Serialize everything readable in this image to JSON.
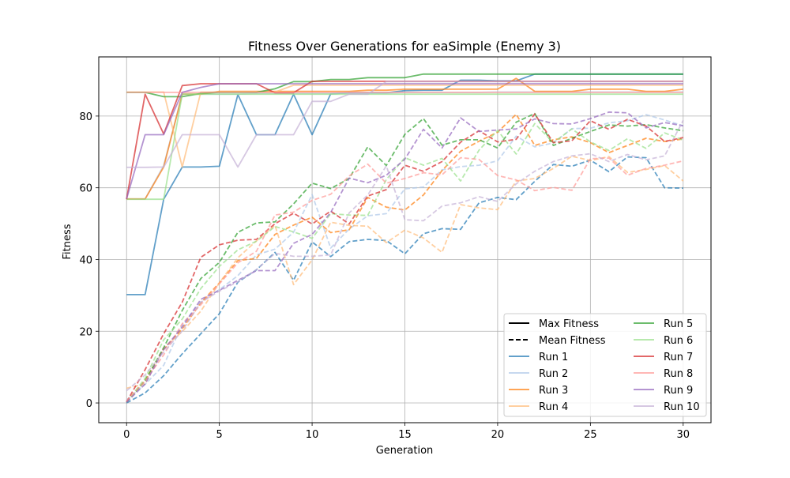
{
  "chart_data": {
    "type": "line",
    "title": "Fitness Over Generations for eaSimple (Enemy 3)",
    "xlabel": "Generation",
    "ylabel": "Fitness",
    "xlim": [
      -1.5,
      31.5
    ],
    "ylim": [
      -5.5,
      96.5
    ],
    "xticks": [
      0,
      5,
      10,
      15,
      20,
      25,
      30
    ],
    "yticks": [
      0,
      20,
      40,
      60,
      80
    ],
    "grid": true,
    "legend_placement": "lower-right",
    "legend": {
      "style_entries": [
        {
          "label": "Max Fitness",
          "style": "solid"
        },
        {
          "label": "Mean Fitness",
          "style": "dashed"
        }
      ]
    },
    "x": [
      0,
      1,
      2,
      3,
      4,
      5,
      6,
      7,
      8,
      9,
      10,
      11,
      12,
      13,
      14,
      15,
      16,
      17,
      18,
      19,
      20,
      21,
      22,
      23,
      24,
      25,
      26,
      27,
      28,
      29,
      30
    ],
    "series": [
      {
        "name": "Run 1",
        "color": "#1f77b4",
        "max": [
          30.2,
          30.2,
          56.8,
          65.8,
          65.8,
          66,
          86,
          74.8,
          74.8,
          86.1,
          74.8,
          86.2,
          86.5,
          86.5,
          86.5,
          87.1,
          87.2,
          87.2,
          90,
          90,
          89.8,
          89.8,
          91.7,
          91.7,
          91.7,
          91.7,
          91.7,
          91.7,
          91.7,
          91.7,
          91.7
        ],
        "mean": [
          0,
          2.8,
          7.6,
          13.7,
          19.3,
          24.9,
          33.7,
          37.1,
          42,
          34.2,
          44.9,
          40.8,
          45,
          45.6,
          45.3,
          41.6,
          47.2,
          48.6,
          48.4,
          55.8,
          57.3,
          56.7,
          61.8,
          66.5,
          66,
          67.7,
          64.5,
          68.6,
          68.4,
          60,
          59.9
        ]
      },
      {
        "name": "Run 2",
        "color": "#aec7e8",
        "max": [
          56.9,
          56.9,
          66.2,
          86.1,
          86.1,
          86.1,
          86.1,
          86.3,
          86.3,
          86.3,
          86.3,
          86.3,
          86.4,
          86.4,
          86.4,
          86.6,
          86.6,
          86.6,
          86.6,
          86.6,
          86.7,
          86.7,
          86.7,
          86.7,
          86.7,
          86.7,
          86.7,
          86.7,
          86.7,
          86.7,
          86.7
        ],
        "mean": [
          0.8,
          5.2,
          10.5,
          21.9,
          28.2,
          31.6,
          35.5,
          41.3,
          42.9,
          47.6,
          58.1,
          43.2,
          48.5,
          52.2,
          52.8,
          59.7,
          60.2,
          65,
          65.9,
          66.3,
          67.5,
          74.4,
          71.4,
          72.5,
          76.5,
          76.6,
          78.1,
          78.7,
          80.4,
          78.9,
          77.3
        ]
      },
      {
        "name": "Run 3",
        "color": "#ff7f0e",
        "max": [
          56.9,
          56.9,
          65.8,
          86.1,
          86.1,
          86.9,
          86.9,
          86.9,
          86.9,
          86.9,
          86.9,
          86.9,
          86.9,
          87.2,
          87.2,
          87.5,
          87.5,
          87.5,
          87.5,
          87.5,
          87.5,
          90.5,
          86.9,
          86.9,
          86.9,
          87.5,
          87.5,
          87.5,
          86.9,
          86.9,
          87.5
        ],
        "mean": [
          0.3,
          6.4,
          14.9,
          20.7,
          27.9,
          33.5,
          39.7,
          40.3,
          47,
          49.6,
          51.8,
          47.5,
          48.3,
          57.3,
          54.6,
          53.8,
          58,
          64.8,
          70.2,
          73,
          75.5,
          80.5,
          71.8,
          73.4,
          74.2,
          72.6,
          69.8,
          71.8,
          73.8,
          72.9,
          73.6
        ]
      },
      {
        "name": "Run 4",
        "color": "#ffbb78",
        "max": [
          86.7,
          86.7,
          86.7,
          65.8,
          86.7,
          86.7,
          86.7,
          86.7,
          86.7,
          88.6,
          88.6,
          88.6,
          88.6,
          88.6,
          88.6,
          88.6,
          88.6,
          88.6,
          88.6,
          88.6,
          88.6,
          88.6,
          88.6,
          88.6,
          88.6,
          88.6,
          88.6,
          88.6,
          88.6,
          88.6,
          88.6
        ],
        "mean": [
          4.1,
          5.3,
          15.4,
          19.9,
          25.6,
          33.5,
          40.5,
          45.2,
          49.5,
          33,
          39.9,
          50.4,
          49.5,
          49.3,
          44.7,
          48.2,
          46,
          42,
          55.3,
          54.4,
          53.9,
          61.9,
          62.6,
          65.4,
          68.8,
          67.6,
          68.7,
          64.3,
          65.1,
          66.2,
          61.9
        ]
      },
      {
        "name": "Run 5",
        "color": "#2ca02c",
        "max": [
          86.6,
          86.6,
          85.4,
          85.4,
          86.3,
          86.6,
          86.6,
          86.6,
          87.6,
          89.6,
          89.6,
          90.2,
          90.2,
          90.7,
          90.7,
          90.7,
          91.7,
          91.7,
          91.7,
          91.7,
          91.7,
          91.7,
          91.7,
          91.7,
          91.7,
          91.7,
          91.7,
          91.7,
          91.7,
          91.7,
          91.7
        ],
        "mean": [
          0.2,
          6.2,
          15.4,
          25.8,
          34.7,
          39.2,
          47.6,
          50.2,
          50.5,
          55.5,
          61.3,
          59.8,
          62.6,
          71.4,
          66.2,
          74.9,
          79.3,
          71.9,
          73.4,
          73.4,
          71.1,
          78.3,
          80.7,
          71.8,
          73.8,
          75.7,
          77.5,
          77.2,
          77.6,
          76.7,
          75.9
        ]
      },
      {
        "name": "Run 6",
        "color": "#98df8a",
        "max": [
          56.8,
          56.8,
          56.8,
          86.1,
          86.1,
          86.1,
          86.1,
          86.1,
          86.1,
          86.1,
          86.1,
          86.1,
          86.1,
          86.1,
          86.1,
          86.1,
          86.1,
          86.1,
          86.1,
          86.1,
          86.1,
          86.1,
          86.1,
          86.1,
          86.1,
          86.1,
          86.1,
          86.1,
          86.1,
          86.1,
          86.1
        ],
        "mean": [
          0.2,
          6.9,
          17.6,
          23.4,
          31.9,
          38.1,
          42.7,
          45.1,
          49.2,
          47.7,
          45.9,
          52.8,
          52.4,
          52.3,
          62.3,
          68.4,
          66.3,
          68.2,
          61.9,
          70.5,
          76,
          69.4,
          77.9,
          72.6,
          76.4,
          72.8,
          70.4,
          73.7,
          71,
          75.3,
          73.3
        ]
      },
      {
        "name": "Run 7",
        "color": "#d62728",
        "max": [
          56.8,
          86.1,
          75,
          88.5,
          89,
          89,
          89,
          89,
          86.5,
          86.5,
          89.7,
          89.7,
          89.7,
          89.7,
          89.7,
          89.7,
          89.7,
          89.7,
          89.7,
          89.7,
          89.7,
          89.7,
          89.7,
          89.7,
          89.7,
          89.7,
          89.7,
          89.7,
          89.7,
          89.7,
          89.7
        ],
        "mean": [
          0.3,
          9.3,
          19.3,
          28.1,
          40.6,
          44.1,
          45.4,
          45.6,
          50,
          52.9,
          49.9,
          53.5,
          49.9,
          57.7,
          59.5,
          66.3,
          64.6,
          67.3,
          72.7,
          75.9,
          72.8,
          73.5,
          80.6,
          72.6,
          73.1,
          78.7,
          76.3,
          79.1,
          77.2,
          72.9,
          74
        ]
      },
      {
        "name": "Run 8",
        "color": "#ff9896",
        "max": [
          86.6,
          86.6,
          86.6,
          86.6,
          86.6,
          86.6,
          86.6,
          86.6,
          86.6,
          86.6,
          86.6,
          86.6,
          86.6,
          86.6,
          86.6,
          86.6,
          86.6,
          86.6,
          86.6,
          86.6,
          86.6,
          86.6,
          86.6,
          86.6,
          86.6,
          86.6,
          86.6,
          86.6,
          86.6,
          86.6,
          86.6
        ],
        "mean": [
          0.5,
          6.1,
          13.4,
          22.1,
          27.4,
          33.2,
          39.1,
          42.3,
          52.4,
          53.2,
          56.5,
          58.2,
          63.3,
          66.6,
          61.3,
          62.6,
          64.2,
          63.6,
          68.4,
          67.9,
          63.4,
          62.2,
          59.2,
          60.1,
          59.3,
          68.1,
          68.3,
          63.5,
          65.4,
          66.3,
          67.5
        ]
      },
      {
        "name": "Run 9",
        "color": "#9467bd",
        "max": [
          56.9,
          74.8,
          74.8,
          86.6,
          88,
          89,
          89,
          89,
          89,
          89,
          89,
          89,
          89,
          89,
          89,
          89,
          89,
          89,
          89,
          89,
          89,
          89,
          89,
          89,
          89,
          89,
          89,
          89,
          89,
          89,
          89
        ],
        "mean": [
          0.2,
          5.3,
          14.9,
          21.2,
          28.9,
          31.4,
          34.2,
          36.9,
          36.9,
          44.5,
          47,
          53.1,
          62.7,
          61.4,
          63.5,
          68,
          76.3,
          71.1,
          79.5,
          75.7,
          76.1,
          76.4,
          79.2,
          77.9,
          77.8,
          79.3,
          81.1,
          80.9,
          76.7,
          78.2,
          77.3
        ]
      },
      {
        "name": "Run 10",
        "color": "#c5b0d5",
        "max": [
          65.7,
          65.7,
          65.8,
          74.8,
          74.8,
          74.8,
          65.8,
          74.8,
          74.8,
          74.8,
          84.1,
          84.1,
          86.1,
          86.1,
          89.6,
          89.6,
          89.6,
          89.6,
          89.6,
          89.6,
          89.6,
          89.6,
          89.6,
          89.6,
          89.6,
          89.6,
          89.6,
          89.6,
          89.6,
          89.6,
          89.6
        ],
        "mean": [
          3.4,
          7.8,
          14.2,
          20.1,
          28.1,
          31.2,
          33.8,
          37.2,
          41.7,
          40.9,
          40.9,
          41.3,
          53,
          58,
          66.1,
          51.1,
          50.8,
          54.9,
          55.8,
          57.5,
          56.2,
          61.1,
          64.6,
          67.3,
          68.9,
          69.5,
          67.3,
          69.3,
          67.8,
          68.9,
          78.8
        ]
      }
    ]
  }
}
